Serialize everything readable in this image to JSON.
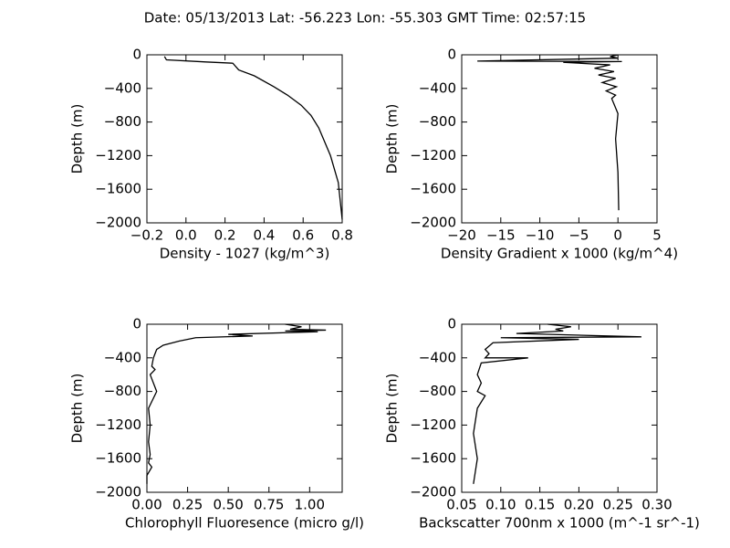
{
  "title": "Date: 05/13/2013  Lat:  -56.223 Lon:  -55.303  GMT Time: 02:57:15",
  "chart_data": [
    {
      "type": "line",
      "xlabel": "Density - 1027 (kg/m^3)",
      "ylabel": "Depth (m)",
      "x": [
        -0.11,
        -0.1,
        0.1,
        0.24,
        0.27,
        0.35,
        0.45,
        0.52,
        0.59,
        0.64,
        0.68,
        0.74,
        0.78,
        0.8
      ],
      "values": [
        -20,
        -60,
        -85,
        -100,
        -180,
        -250,
        -380,
        -480,
        -600,
        -720,
        -870,
        -1200,
        -1520,
        -1960
      ],
      "color": "#000000",
      "xlim": [
        -0.2,
        0.8
      ],
      "ylim": [
        -2000,
        0
      ],
      "xticks": [
        {
          "value": -0.2,
          "label": "−0.2"
        },
        {
          "value": 0,
          "label": "0.0"
        },
        {
          "value": 0.2,
          "label": "0.2"
        },
        {
          "value": 0.4,
          "label": "0.4"
        },
        {
          "value": 0.6,
          "label": "0.6"
        },
        {
          "value": 0.8,
          "label": "0.8"
        }
      ],
      "yticks": [
        0,
        {
          "value": -400,
          "label": "−400"
        },
        {
          "value": -800,
          "label": "−800"
        },
        {
          "value": -1200,
          "label": "−1200"
        },
        {
          "value": -1600,
          "label": "−1600"
        },
        {
          "value": -2000,
          "label": "−2000"
        }
      ]
    },
    {
      "type": "line",
      "xlabel": "Density Gradient x 1000 (kg/m^4)",
      "ylabel": "Depth (m)",
      "x": [
        0,
        -1,
        0,
        -18,
        0.5,
        -7,
        -1,
        -3,
        -0.5,
        -2.5,
        -0.3,
        -2,
        -0.2,
        -1.5,
        -0.3,
        -0.8,
        0,
        -0.3,
        0,
        0.1
      ],
      "values": [
        0,
        -20,
        -40,
        -75,
        -80,
        -90,
        -120,
        -160,
        -200,
        -240,
        -280,
        -330,
        -380,
        -430,
        -480,
        -520,
        -700,
        -1000,
        -1400,
        -1850
      ],
      "color": "#000000",
      "xlim": [
        -20,
        5
      ],
      "ylim": [
        -2000,
        0
      ],
      "xticks": [
        {
          "value": -20,
          "label": "−20"
        },
        {
          "value": -15,
          "label": "−15"
        },
        {
          "value": -10,
          "label": "−10"
        },
        {
          "value": -5,
          "label": "−5"
        },
        0,
        5
      ],
      "yticks": [
        0,
        {
          "value": -400,
          "label": "−400"
        },
        {
          "value": -800,
          "label": "−800"
        },
        {
          "value": -1200,
          "label": "−1200"
        },
        {
          "value": -1600,
          "label": "−1600"
        },
        {
          "value": -2000,
          "label": "−2000"
        }
      ]
    },
    {
      "type": "line",
      "xlabel": "Chlorophyll Fluoresence (micro g/l)",
      "ylabel": "Depth (m)",
      "x": [
        0.85,
        0.95,
        0.88,
        1.1,
        0.85,
        1.05,
        0.5,
        0.65,
        0.3,
        0.2,
        0.1,
        0.06,
        0.04,
        0.03,
        0.05,
        0.02,
        0.06,
        0.01,
        0.02,
        0.01,
        0.02,
        0.01,
        0.03,
        0,
        0
      ],
      "values": [
        0,
        -30,
        -60,
        -70,
        -80,
        -90,
        -120,
        -140,
        -160,
        -200,
        -250,
        -300,
        -400,
        -500,
        -540,
        -600,
        -800,
        -1000,
        -1200,
        -1400,
        -1550,
        -1650,
        -1700,
        -1800,
        -1900
      ],
      "color": "#000000",
      "xlim": [
        0,
        1.2
      ],
      "ylim": [
        -2000,
        0
      ],
      "xticks": [
        {
          "value": 0,
          "label": "0.00"
        },
        0.25,
        {
          "value": 0.5,
          "label": "0.50"
        },
        0.75,
        {
          "value": 1,
          "label": "1.00"
        }
      ],
      "yticks": [
        0,
        {
          "value": -400,
          "label": "−400"
        },
        {
          "value": -800,
          "label": "−800"
        },
        {
          "value": -1200,
          "label": "−1200"
        },
        {
          "value": -1600,
          "label": "−1600"
        },
        {
          "value": -2000,
          "label": "−2000"
        }
      ]
    },
    {
      "type": "line",
      "xlabel": "Backscatter 700nm x 1000 (m^-1 sr^-1)",
      "ylabel": "Depth (m)",
      "x": [
        0.16,
        0.19,
        0.17,
        0.18,
        0.12,
        0.28,
        0.1,
        0.2,
        0.09,
        0.08,
        0.085,
        0.08,
        0.135,
        0.075,
        0.07,
        0.075,
        0.07,
        0.08,
        0.07,
        0.065,
        0.07,
        0.065
      ],
      "values": [
        0,
        -30,
        -60,
        -80,
        -110,
        -150,
        -160,
        -180,
        -220,
        -300,
        -350,
        -400,
        -400,
        -460,
        -600,
        -700,
        -800,
        -850,
        -1000,
        -1300,
        -1600,
        -1900
      ],
      "color": "#000000",
      "xlim": [
        0.05,
        0.3
      ],
      "ylim": [
        -2000,
        0
      ],
      "xticks": [
        0.05,
        {
          "value": 0.1,
          "label": "0.10"
        },
        0.15,
        {
          "value": 0.2,
          "label": "0.20"
        },
        0.25,
        {
          "value": 0.3,
          "label": "0.30"
        }
      ],
      "yticks": [
        0,
        {
          "value": -400,
          "label": "−400"
        },
        {
          "value": -800,
          "label": "−800"
        },
        {
          "value": -1200,
          "label": "−1200"
        },
        {
          "value": -1600,
          "label": "−1600"
        },
        {
          "value": -2000,
          "label": "−2000"
        }
      ]
    }
  ]
}
